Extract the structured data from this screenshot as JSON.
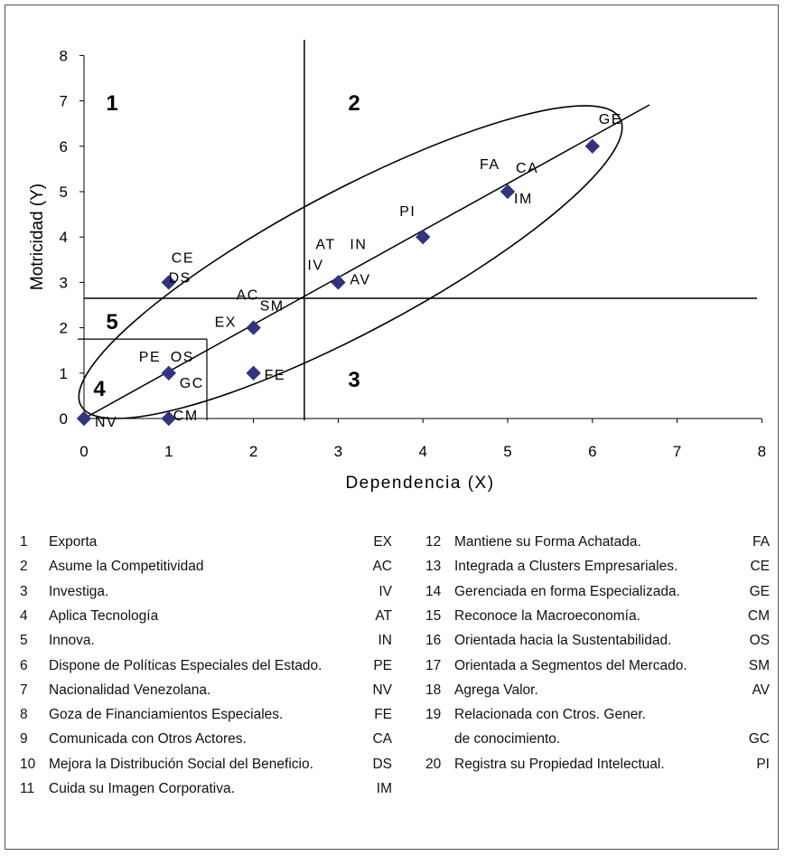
{
  "chart_data": {
    "type": "scatter",
    "xlabel": "Dependencia (X)",
    "ylabel": "Motricidad (Y)",
    "xlim": [
      0,
      8
    ],
    "ylim": [
      0,
      8
    ],
    "xticks": [
      0,
      1,
      2,
      3,
      4,
      5,
      6,
      7,
      8
    ],
    "yticks": [
      0,
      1,
      2,
      3,
      4,
      5,
      6,
      7,
      8
    ],
    "grid": false,
    "marker_color": "#33337f",
    "quadrant_lines": {
      "x": 2.6,
      "y": 2.65
    },
    "zone_lines": {
      "x": 1.45,
      "y": 1.75
    },
    "zones": [
      "1",
      "2",
      "3",
      "4",
      "5"
    ],
    "points": [
      {
        "x": 0,
        "y": 0,
        "labels": [
          "NV"
        ]
      },
      {
        "x": 1,
        "y": 0,
        "labels": [
          "CM"
        ]
      },
      {
        "x": 1,
        "y": 1,
        "labels": [
          "PE",
          "OS",
          "GC"
        ]
      },
      {
        "x": 1,
        "y": 3,
        "labels": [
          "CE"
        ]
      },
      {
        "x": 2,
        "y": 1,
        "labels": [
          "FE"
        ]
      },
      {
        "x": 2,
        "y": 2,
        "labels": [
          "DS",
          "EX",
          "AC",
          "SM"
        ]
      },
      {
        "x": 3,
        "y": 3,
        "labels": [
          "AT",
          "IN",
          "IV",
          "AV"
        ]
      },
      {
        "x": 4,
        "y": 4,
        "labels": [
          "PI"
        ]
      },
      {
        "x": 5,
        "y": 5,
        "labels": [
          "FA",
          "CA",
          "IM"
        ]
      },
      {
        "x": 6,
        "y": 6,
        "labels": [
          "GE"
        ]
      }
    ]
  },
  "legend_left": [
    {
      "num": "1",
      "text": "Exporta",
      "code": "EX"
    },
    {
      "num": "2",
      "text": "Asume la Competitividad",
      "code": "AC"
    },
    {
      "num": "3",
      "text": "Investiga.",
      "code": "IV"
    },
    {
      "num": "4",
      "text": "Aplica Tecnología",
      "code": "AT"
    },
    {
      "num": "5",
      "text": "Innova.",
      "code": "IN"
    },
    {
      "num": "6",
      "text": "Dispone de Políticas Especiales del Estado.",
      "code": "PE"
    },
    {
      "num": "7",
      "text": "Nacionalidad Venezolana.",
      "code": "NV"
    },
    {
      "num": "8",
      "text": "Goza de Financiamientos Especiales.",
      "code": "FE"
    },
    {
      "num": "9",
      "text": "Comunicada con Otros Actores.",
      "code": "CA"
    },
    {
      "num": "10",
      "text": "Mejora la Distribución Social del Beneficio.",
      "code": "DS"
    },
    {
      "num": "11",
      "text": "Cuida su Imagen Corporativa.",
      "code": "IM"
    }
  ],
  "legend_right": [
    {
      "num": "12",
      "text": "Mantiene su Forma Achatada.",
      "code": "FA"
    },
    {
      "num": "13",
      "text": "Integrada a Clusters Empresariales.",
      "code": "CE"
    },
    {
      "num": "14",
      "text": "Gerenciada en forma Especializada.",
      "code": "GE"
    },
    {
      "num": "15",
      "text": "Reconoce la Macroeconomía.",
      "code": "CM"
    },
    {
      "num": "16",
      "text": "Orientada hacia la Sustentabilidad.",
      "code": "OS"
    },
    {
      "num": "17",
      "text": "Orientada a Segmentos del Mercado.",
      "code": "SM"
    },
    {
      "num": "18",
      "text": "Agrega Valor.",
      "code": "AV"
    },
    {
      "num": "19",
      "text": "Relacionada con Ctros. Gener.",
      "code": ""
    },
    {
      "num": "",
      "text": "de conocimiento.",
      "code": "GC"
    },
    {
      "num": "20",
      "text": "Registra su Propiedad Intelectual.",
      "code": "PI"
    }
  ]
}
